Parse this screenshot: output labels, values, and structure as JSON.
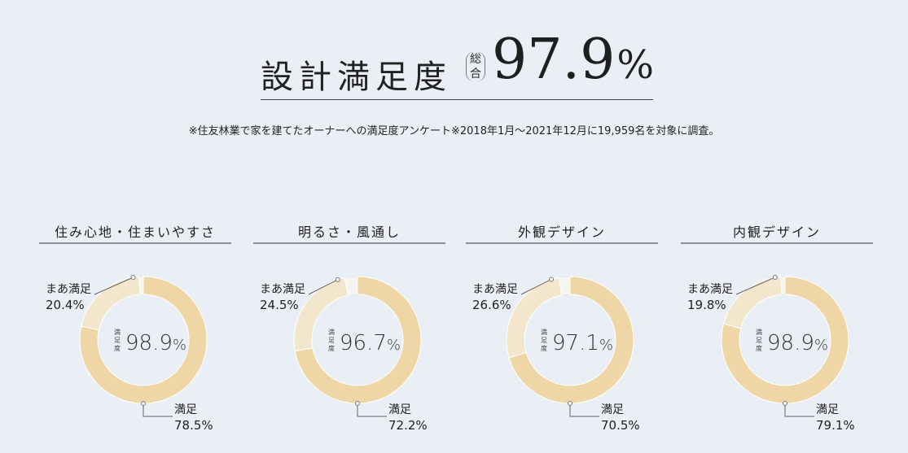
{
  "headline": {
    "label": "設計満足度",
    "sub_line1": "総",
    "sub_line2": "合",
    "value": "97.9",
    "unit": "%"
  },
  "footnote": "※住友林業で家を建てたオーナーへの満足度アンケート※2018年1月～2021年12月に19,959名を対象に調査。",
  "colors": {
    "background": "#e9eff4",
    "satisfied": "#efd6a6",
    "somewhat_satisfied": "#f2e6cd",
    "rest": "#f7f5f0"
  },
  "chart_data": [
    {
      "type": "pie",
      "title": "住み心地・住まいやすさ",
      "center_caption": [
        "満",
        "足",
        "度"
      ],
      "center_value": "98.9",
      "center_unit": "%",
      "slices": [
        {
          "name": "満足",
          "value": 78.5,
          "label": "78.5%"
        },
        {
          "name": "まあ満足",
          "value": 20.4,
          "label": "20.4%"
        }
      ]
    },
    {
      "type": "pie",
      "title": "明るさ・風通し",
      "center_caption": [
        "満",
        "足",
        "度"
      ],
      "center_value": "96.7",
      "center_unit": "%",
      "slices": [
        {
          "name": "満足",
          "value": 72.2,
          "label": "72.2%"
        },
        {
          "name": "まあ満足",
          "value": 24.5,
          "label": "24.5%"
        }
      ]
    },
    {
      "type": "pie",
      "title": "外観デザイン",
      "center_caption": [
        "満",
        "足",
        "度"
      ],
      "center_value": "97.1",
      "center_unit": "%",
      "slices": [
        {
          "name": "満足",
          "value": 70.5,
          "label": "70.5%"
        },
        {
          "name": "まあ満足",
          "value": 26.6,
          "label": "26.6%"
        }
      ]
    },
    {
      "type": "pie",
      "title": "内観デザイン",
      "center_caption": [
        "満",
        "足",
        "度"
      ],
      "center_value": "98.9",
      "center_unit": "%",
      "slices": [
        {
          "name": "満足",
          "value": 79.1,
          "label": "79.1%"
        },
        {
          "name": "まあ満足",
          "value": 19.8,
          "label": "19.8%"
        }
      ]
    }
  ]
}
